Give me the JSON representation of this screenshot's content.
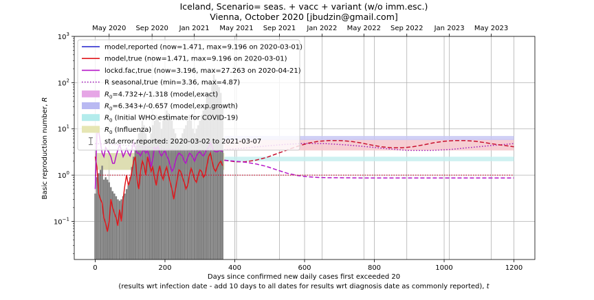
{
  "chart_data": {
    "type": "line",
    "title": "Iceland, Scenario= seas. + vacc + variant (w/o imm.esc.)",
    "subtitle": "Vienna, October 2020 [jbudzin@gmail.com]",
    "xlabel": "Days since confirmed new daily cases first exceeded 20",
    "xlabel2_prefix": "(results wrt infection date - add 10 days to all dates for results wrt diagnosis date as commonly reported), ",
    "xlabel2_var": "t",
    "ylabel_prefix": "Basic reproduction number, ",
    "ylabel_var": "R",
    "xlim": [
      -60,
      1260
    ],
    "ylim": [
      0.015,
      1000
    ],
    "yscale": "log",
    "grid": true,
    "legend_position": "upper-left",
    "x_ticks": [
      0,
      200,
      400,
      600,
      800,
      1000,
      1200
    ],
    "y_ticks": [
      {
        "value": 0.1,
        "base": "10",
        "exp": "−1"
      },
      {
        "value": 1,
        "base": "10",
        "exp": "0"
      },
      {
        "value": 10,
        "base": "10",
        "exp": "1"
      },
      {
        "value": 100,
        "base": "10",
        "exp": "2"
      },
      {
        "value": 1000,
        "base": "10",
        "exp": "3"
      }
    ],
    "top_date_ticks": [
      {
        "x": 40,
        "label": "May 2020"
      },
      {
        "x": 163,
        "label": "Sep 2020"
      },
      {
        "x": 284,
        "label": "Jan 2021"
      },
      {
        "x": 405,
        "label": "May 2021"
      },
      {
        "x": 528,
        "label": "Sep 2021"
      },
      {
        "x": 650,
        "label": "Jan 2022"
      },
      {
        "x": 770,
        "label": "May 2022"
      },
      {
        "x": 893,
        "label": "Sep 2022"
      },
      {
        "x": 1015,
        "label": "Jan 2023"
      },
      {
        "x": 1135,
        "label": "May 2023"
      }
    ],
    "legend": [
      {
        "kind": "line",
        "color": "#1f1fcc",
        "dash": "",
        "label": "model,reported (now=1.471, max=9.196 on 2020-03-01)"
      },
      {
        "kind": "line",
        "color": "#e0161b",
        "dash": "",
        "label": "model,true (now=1.471, max=9.196 on 2020-03-01)"
      },
      {
        "kind": "line",
        "color": "#b414c8",
        "dash": "",
        "label": "lockd.fac,true (now=3.196, max=27.263 on 2020-04-21)"
      },
      {
        "kind": "line",
        "color": "#a018b8",
        "dash": "1.5,2.5",
        "label": "R seasonal,true (min=3.36, max=4.87)"
      },
      {
        "kind": "patch",
        "color": "#e6a6e6",
        "sub": "0",
        "label": "=4.732+/-1.318 (model,exact)"
      },
      {
        "kind": "patch",
        "color": "#b9b9f2",
        "sub": "0",
        "label": "=6.343+/-0.657 (model,exp.growth)"
      },
      {
        "kind": "patch",
        "color": "#b3ecec",
        "sub": "0",
        "label": " (Initial WHO estimate for COVID-19)"
      },
      {
        "kind": "patch",
        "color": "#e6e6b4",
        "sub": "0",
        "label": " (Influenza)"
      },
      {
        "kind": "errbar",
        "color": "#777777",
        "label": "std.error,reported: 2020-03-02 to 2021-03-07"
      }
    ],
    "bands": [
      {
        "name": "R0 (model,exact)",
        "color": "#f5c6cb",
        "center": 4.732,
        "pm": 1.318,
        "x_start": 370,
        "x_end": 1200
      },
      {
        "name": "R0 (model,exp.growth)",
        "color": "#c8c8f4",
        "center": 6.343,
        "pm": 0.657,
        "x_start": 370,
        "x_end": 1200
      },
      {
        "name": "R0 (Initial WHO estimate for COVID-19)",
        "color": "#c6eeee",
        "low": 2.0,
        "high": 2.5,
        "x_start": 370,
        "x_end": 1200
      },
      {
        "name": "R0 (Influenza)",
        "color": "#d8d8a6",
        "low": 1.3,
        "high": 3.0,
        "x_start": 0,
        "x_end": 370
      }
    ],
    "bars": {
      "color": "#808080",
      "x": [
        0,
        5,
        10,
        15,
        20,
        25,
        30,
        35,
        40,
        45,
        50,
        55,
        60,
        65,
        70,
        75,
        80,
        85,
        90,
        95,
        100,
        105,
        110,
        115,
        120,
        125,
        130,
        135,
        140,
        145,
        150,
        155,
        160,
        165,
        170,
        175,
        180,
        185,
        190,
        195,
        200,
        205,
        210,
        215,
        220,
        225,
        230,
        235,
        240,
        245,
        250,
        255,
        260,
        265,
        270,
        275,
        280,
        285,
        290,
        295,
        300,
        305,
        310,
        315,
        320,
        325,
        330,
        335,
        340,
        345,
        350,
        355,
        360,
        365
      ],
      "values": [
        0.4,
        0.9,
        1.1,
        1.3,
        1.6,
        0.8,
        0.9,
        0.8,
        0.7,
        0.55,
        0.45,
        0.4,
        0.35,
        0.3,
        0.28,
        0.3,
        0.35,
        0.4,
        0.5,
        0.6,
        0.9,
        1.5,
        2.5,
        3.5,
        5,
        8,
        10,
        15,
        12,
        8,
        6,
        5,
        8,
        12,
        15,
        20,
        18,
        14,
        10,
        15,
        20,
        25,
        22,
        18,
        15,
        10,
        8,
        6,
        5,
        6,
        8,
        10,
        12,
        15,
        20,
        15,
        10,
        8,
        10,
        12,
        15,
        20,
        25,
        30,
        50,
        60,
        55,
        100,
        150,
        120,
        90,
        80,
        60,
        30
      ]
    },
    "series": [
      {
        "name": "model,reported",
        "color": "#e0161b",
        "x": [
          0,
          5,
          10,
          15,
          20,
          25,
          30,
          35,
          40,
          45,
          50,
          55,
          60,
          65,
          70,
          75,
          80,
          85,
          90,
          95,
          100,
          105,
          110,
          115,
          120,
          125,
          130,
          135,
          140,
          145,
          150,
          155,
          160,
          165,
          170,
          175,
          180,
          185,
          190,
          195,
          200,
          205,
          210,
          215,
          220,
          225,
          230,
          235,
          240,
          245,
          250,
          255,
          260,
          265,
          270,
          275,
          280,
          285,
          290,
          295,
          300,
          305,
          310,
          315,
          320,
          325,
          330,
          335,
          340,
          345,
          350,
          355,
          360,
          365
        ],
        "y": [
          2.5,
          1.5,
          0.4,
          0.3,
          0.25,
          0.12,
          0.09,
          0.06,
          0.1,
          0.3,
          0.2,
          0.15,
          0.12,
          0.08,
          0.18,
          0.1,
          0.3,
          0.6,
          1.0,
          0.6,
          0.8,
          1.2,
          2.0,
          2.5,
          0.8,
          0.5,
          1.2,
          2.0,
          1.6,
          1.0,
          2.5,
          1.8,
          1.2,
          1.5,
          0.9,
          0.6,
          1.1,
          1.6,
          1.0,
          0.8,
          1.2,
          1.5,
          1.0,
          0.7,
          0.5,
          0.3,
          0.5,
          0.8,
          1.3,
          1.2,
          0.9,
          0.7,
          0.5,
          0.6,
          1.0,
          1.4,
          1.1,
          0.8,
          0.7,
          1.0,
          1.3,
          1.2,
          0.9,
          1.0,
          1.6,
          2.5,
          3.0,
          2.0,
          1.4,
          1.2,
          1.5,
          1.8,
          2.0,
          1.6
        ]
      },
      {
        "name": "lockd.fac,true",
        "color": "#b414c8",
        "x": [
          0,
          5,
          10,
          15,
          20,
          25,
          30,
          35,
          40,
          45,
          50,
          55,
          60,
          65,
          70,
          75,
          80,
          85,
          90,
          95,
          100,
          105,
          110,
          115,
          120,
          125,
          130,
          135,
          140,
          145,
          150,
          155,
          160,
          165,
          170,
          175,
          180,
          185,
          190,
          195,
          200,
          205,
          210,
          215,
          220,
          225,
          230,
          235,
          240,
          245,
          250,
          255,
          260,
          265,
          270,
          275,
          280,
          285,
          290,
          295,
          300,
          305,
          310,
          315,
          320,
          325,
          330,
          335,
          340,
          345,
          350,
          355,
          360,
          365
        ],
        "y": [
          0.5,
          8,
          9,
          5,
          3,
          2.5,
          4,
          3.5,
          3,
          2.5,
          1.8,
          1.8,
          2.6,
          3.5,
          4.5,
          3.5,
          2.5,
          3.0,
          3.8,
          3.0,
          2.6,
          3.6,
          5.2,
          4.0,
          3.0,
          3.0,
          2.6,
          3.2,
          3.6,
          3.0,
          3.4,
          2.6,
          1.5,
          2.2,
          4.0,
          3.6,
          4.2,
          3.0,
          2.6,
          3.0,
          3.4,
          2.6,
          2.2,
          1.6,
          1.2,
          1.4,
          2.0,
          2.6,
          3.0,
          2.8,
          2.6,
          2.0,
          1.8,
          2.4,
          3.0,
          2.8,
          2.4,
          2.0,
          2.6,
          3.0,
          3.2,
          2.8,
          2.6,
          3.0,
          3.6,
          4.0,
          5.0,
          4.0,
          3.4,
          3.2,
          3.2,
          3.4,
          3.4,
          3.2
        ]
      },
      {
        "name": "R seasonal,true",
        "color": "#a018b8",
        "x": [
          0,
          60,
          120,
          180,
          240,
          300,
          360,
          420,
          480,
          540,
          600,
          660,
          720,
          780,
          840,
          900,
          960,
          1020,
          1080,
          1140,
          1200
        ],
        "y": [
          4.8,
          4.6,
          4.2,
          3.8,
          3.5,
          3.4,
          3.5,
          3.8,
          4.2,
          4.6,
          4.85,
          4.8,
          4.5,
          4.1,
          3.7,
          3.4,
          3.4,
          3.6,
          4.0,
          4.4,
          4.8
        ]
      },
      {
        "name": "model,true (projection)",
        "color": "#c8102e",
        "x": [
          370,
          400,
          430,
          460,
          490,
          520,
          550,
          580,
          610,
          640,
          670,
          700,
          730,
          760,
          790,
          820,
          850,
          880,
          910,
          940,
          970,
          1000,
          1030,
          1060,
          1090,
          1120,
          1150,
          1180,
          1200
        ],
        "y": [
          2.1,
          1.95,
          1.95,
          2.1,
          2.4,
          2.9,
          3.5,
          4.2,
          4.9,
          5.4,
          5.6,
          5.6,
          5.4,
          5.0,
          4.5,
          4.1,
          3.9,
          3.9,
          4.1,
          4.5,
          5.0,
          5.4,
          5.6,
          5.6,
          5.4,
          5.0,
          4.6,
          4.3,
          4.1
        ]
      },
      {
        "name": "lockd.fac,true (projection)",
        "color": "#b414c8",
        "x": [
          370,
          400,
          430,
          460,
          490,
          520,
          550,
          580,
          610,
          640,
          670,
          700,
          760,
          820,
          880,
          940,
          1000,
          1060,
          1120,
          1200
        ],
        "y": [
          2.1,
          2.0,
          1.9,
          1.75,
          1.55,
          1.3,
          1.1,
          0.98,
          0.92,
          0.89,
          0.88,
          0.88,
          0.87,
          0.87,
          0.87,
          0.87,
          0.87,
          0.87,
          0.87,
          0.87
        ]
      },
      {
        "name": "reference R=1",
        "color": "#c8102e",
        "x": [
          0,
          1200
        ],
        "y": [
          1.0,
          1.0
        ]
      }
    ]
  }
}
